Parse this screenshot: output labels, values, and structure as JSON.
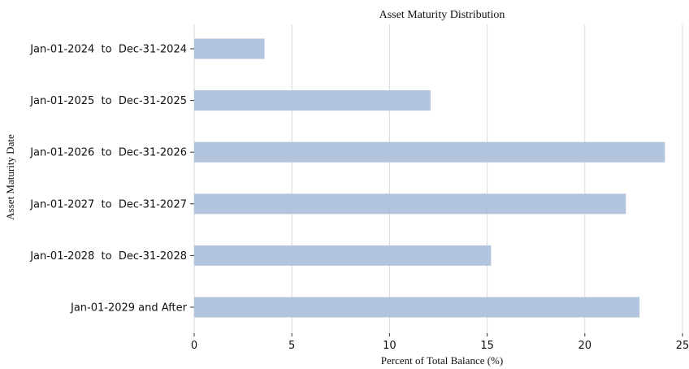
{
  "chart_data": {
    "type": "bar",
    "orientation": "horizontal",
    "title": "Asset Maturity Distribution",
    "xlabel": "Percent of Total Balance (%)",
    "ylabel": "Asset Maturity Date",
    "categories": [
      "Jan-01-2024  to  Dec-31-2024",
      "Jan-01-2025  to  Dec-31-2025",
      "Jan-01-2026  to  Dec-31-2026",
      "Jan-01-2027  to  Dec-31-2027",
      "Jan-01-2028  to  Dec-31-2028",
      "Jan-01-2029 and After"
    ],
    "values": [
      3.6,
      12.1,
      24.1,
      22.1,
      15.2,
      22.8
    ],
    "xlim": [
      0,
      25
    ],
    "xticks": [
      "0",
      "5",
      "10",
      "15",
      "20",
      "25"
    ],
    "grid": "vertical",
    "bar_color": "#aec1dc"
  }
}
